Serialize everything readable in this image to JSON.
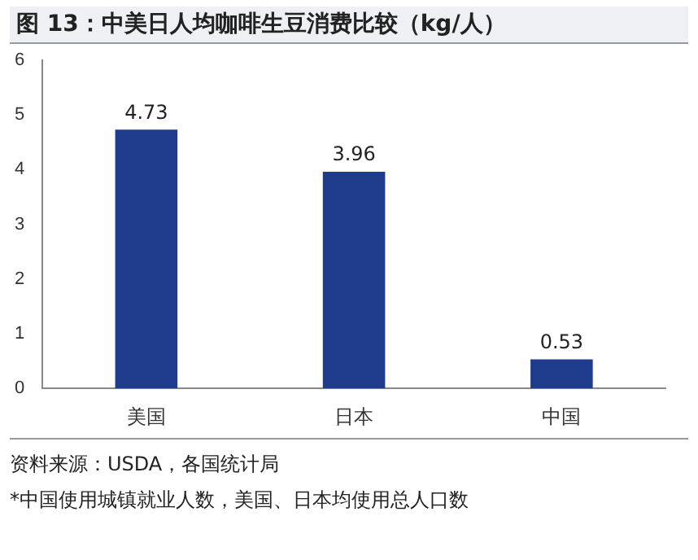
{
  "chart_data": {
    "type": "bar",
    "title": "图 13：中美日人均咖啡生豆消费比较（kg/人）",
    "categories": [
      "美国",
      "日本",
      "中国"
    ],
    "values": [
      4.73,
      3.96,
      0.53
    ],
    "color": "#1f3c8c",
    "ylim": [
      0,
      6
    ],
    "yticks": [
      0,
      1,
      2,
      3,
      4,
      5,
      6
    ],
    "grid": false,
    "legend": false,
    "data_labels": true,
    "annotations": [
      "资料来源：USDA，各国统计局",
      "*中国使用城镇就业人数，美国、日本均使用总人口数"
    ]
  }
}
